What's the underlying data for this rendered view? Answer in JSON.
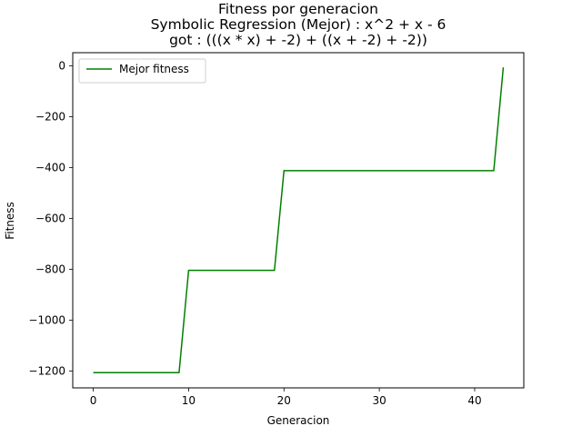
{
  "chart_data": {
    "type": "line",
    "title_lines": [
      "Fitness por generacion",
      "Symbolic Regression (Mejor) : x^2 + x - 6",
      "got : (((x * x) + -2) + ((x + -2) + -2))"
    ],
    "xlabel": "Generacion",
    "ylabel": "Fitness",
    "xlim": [
      -2.15,
      45.15
    ],
    "ylim": [
      -1266,
      52
    ],
    "xticks": [
      0,
      10,
      20,
      30,
      40
    ],
    "yticks": [
      0,
      -200,
      -400,
      -600,
      -800,
      -1000,
      -1200
    ],
    "xtick_labels": [
      "0",
      "10",
      "20",
      "30",
      "40"
    ],
    "ytick_labels": [
      "0",
      "−200",
      "−400",
      "−600",
      "−800",
      "−1000",
      "−1200"
    ],
    "grid": false,
    "legend_position": "upper-left",
    "series": [
      {
        "name": "Mejor fitness",
        "color": "#008000",
        "x": [
          0,
          1,
          2,
          3,
          4,
          5,
          6,
          7,
          8,
          9,
          10,
          11,
          12,
          13,
          14,
          15,
          16,
          17,
          18,
          19,
          20,
          21,
          22,
          23,
          24,
          25,
          26,
          27,
          28,
          29,
          30,
          31,
          32,
          33,
          34,
          35,
          36,
          37,
          38,
          39,
          40,
          41,
          42,
          43
        ],
        "y": [
          -1206,
          -1206,
          -1206,
          -1206,
          -1206,
          -1206,
          -1206,
          -1206,
          -1206,
          -1206,
          -804,
          -804,
          -804,
          -804,
          -804,
          -804,
          -804,
          -804,
          -804,
          -804,
          -412,
          -412,
          -412,
          -412,
          -412,
          -412,
          -412,
          -412,
          -412,
          -412,
          -412,
          -412,
          -412,
          -412,
          -412,
          -412,
          -412,
          -412,
          -412,
          -412,
          -412,
          -412,
          -412,
          -6
        ]
      }
    ]
  }
}
